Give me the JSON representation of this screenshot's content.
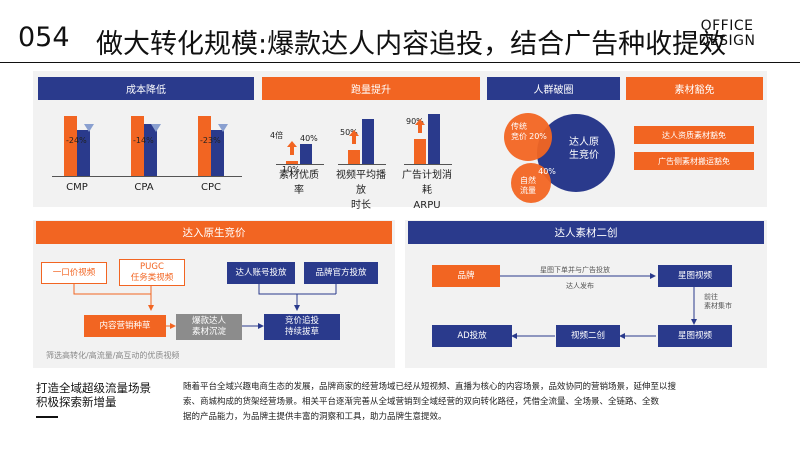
{
  "header": {
    "number": "054",
    "title": "做大转化规模:爆款达人内容追投，结合广告种收提效",
    "brand_line1": "OFFICE",
    "brand_line2": "DESIGN"
  },
  "top": {
    "cost": {
      "title": "成本降低",
      "chart_data": {
        "type": "bar",
        "categories": [
          "CMP",
          "CPA",
          "CPC"
        ],
        "series": [
          {
            "values": [
              100,
              100,
              100
            ]
          },
          {
            "values": [
              76,
              86,
              77
            ]
          }
        ],
        "labels": [
          "-24%",
          "-14%",
          "-23%"
        ],
        "ylim": [
          0,
          100
        ]
      }
    },
    "volume": {
      "title": "跑量提升",
      "chart_data": {
        "type": "bar",
        "categories": [
          "素材优质率",
          "视频平均播放时长",
          "广告计划消耗ARPU"
        ],
        "category_lines": [
          [
            "素材优质",
            "率"
          ],
          [
            "视频平均播放",
            "时长"
          ],
          [
            "广告计划消耗",
            "ARPU"
          ]
        ],
        "series": [
          {
            "values": [
              10,
              50,
              90
            ]
          },
          {
            "values": [
              40,
              90,
              100
            ]
          }
        ],
        "low_labels": [
          "10%",
          "",
          ""
        ],
        "high_labels": [
          "40%",
          "50%",
          "90%"
        ],
        "lift_label": "4倍"
      }
    },
    "crowd": {
      "title": "人群破圈",
      "circles": {
        "big": "达人原生竞价",
        "big_line1": "达人原",
        "big_line2": "生竞价",
        "left_line1": "传统",
        "left_line2": "竞价",
        "bottom_line1": "自然",
        "bottom_line2": "流量",
        "pct_left": "20%",
        "pct_bottom": "40%"
      }
    },
    "material": {
      "title": "素材豁免",
      "items": [
        "达人资质素材豁免",
        "广告侧素材搬运豁免"
      ]
    }
  },
  "mid_left": {
    "title": "达入原生竞价",
    "box_a": "一口价视频",
    "box_b_line1": "PUGC",
    "box_b_line2": "任务类视频",
    "box_c": "达人账号投放",
    "box_d": "品牌官方投放",
    "box_e": "内容营销种草",
    "box_f_line1": "爆款达人",
    "box_f_line2": "素材沉淀",
    "box_g_line1": "竞价追投",
    "box_g_line2": "持续拔草",
    "footnote": "筛选高转化/高流量/高互动的优质视频"
  },
  "mid_right": {
    "title": "达人素材二创",
    "brand": "品牌",
    "star1": "星图视频",
    "star2": "星图视频",
    "remix": "视频二创",
    "ad": "AD投放",
    "note_top": "星图下单并与广告投放",
    "note_mid": "达人发布",
    "note_right_line1": "前往",
    "note_right_line2": "素材集市"
  },
  "bottom": {
    "heading_line1": "打造全域超级流量场景",
    "heading_line2": "积极探索新增量",
    "para_line1": "随着平台全域兴趣电商生态的发展，品牌商家的经营场域已经从短视频、直播为核心的内容场景，品效协同的营销场景，延伸至以搜",
    "para_line2": "索、商城构成的货架经营场景。相关平台逐渐完善从全域营销到全域经营的双向转化路径，凭借全流量、全场景、全链路、全数",
    "para_line3": "据的产品能力，为品牌主提供丰富的洞察和工具，助力品牌生意提效。"
  }
}
